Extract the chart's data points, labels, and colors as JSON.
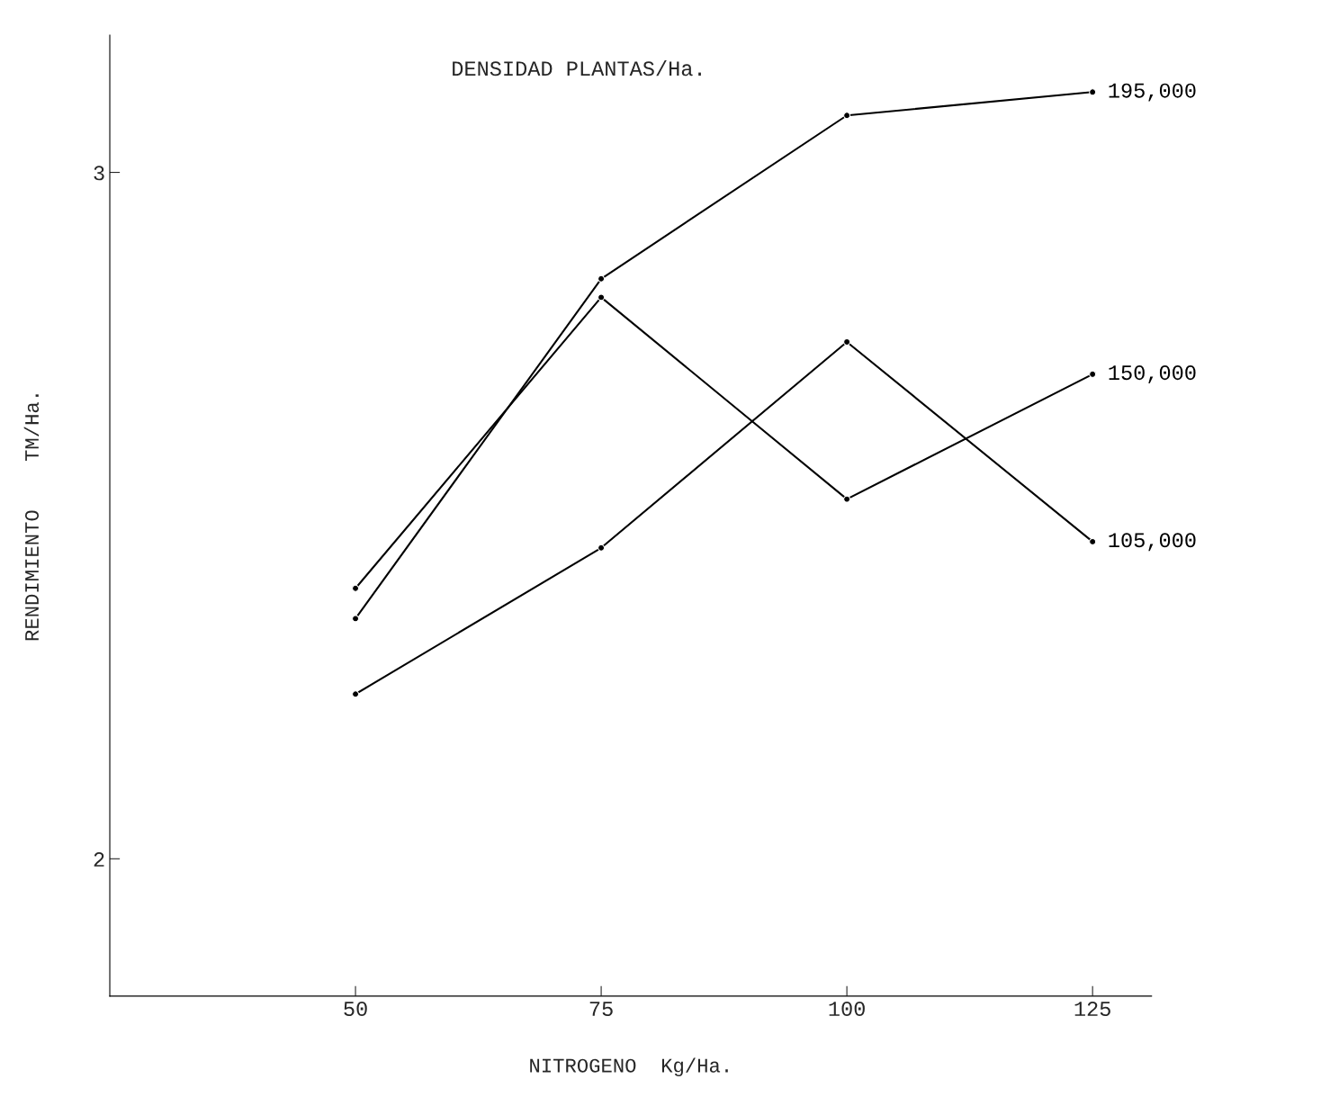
{
  "chart_data": {
    "type": "line",
    "title": "DENSIDAD PLANTAS/Ha.",
    "xlabel": "NITROGENO  Kg/Ha.",
    "ylabel": "RENDIMIENTO    TM/Ha.",
    "x": [
      50,
      75,
      100,
      125
    ],
    "series": [
      {
        "name": "195,000",
        "color": "#000000",
        "values": [
          2.35,
          2.845,
          3.083,
          3.117
        ]
      },
      {
        "name": "150,000",
        "color": "#000000",
        "values": [
          2.394,
          2.818,
          2.524,
          2.706
        ]
      },
      {
        "name": "105,000",
        "color": "#000000",
        "values": [
          2.24,
          2.453,
          2.753,
          2.462
        ]
      }
    ],
    "xlim": [
      25,
      131
    ],
    "ylim": [
      1.8,
      3.2
    ],
    "xticks": [
      50,
      75,
      100,
      125
    ],
    "yticks": [
      2,
      3
    ],
    "grid": false,
    "marker": "circle",
    "line_style": "solid"
  }
}
